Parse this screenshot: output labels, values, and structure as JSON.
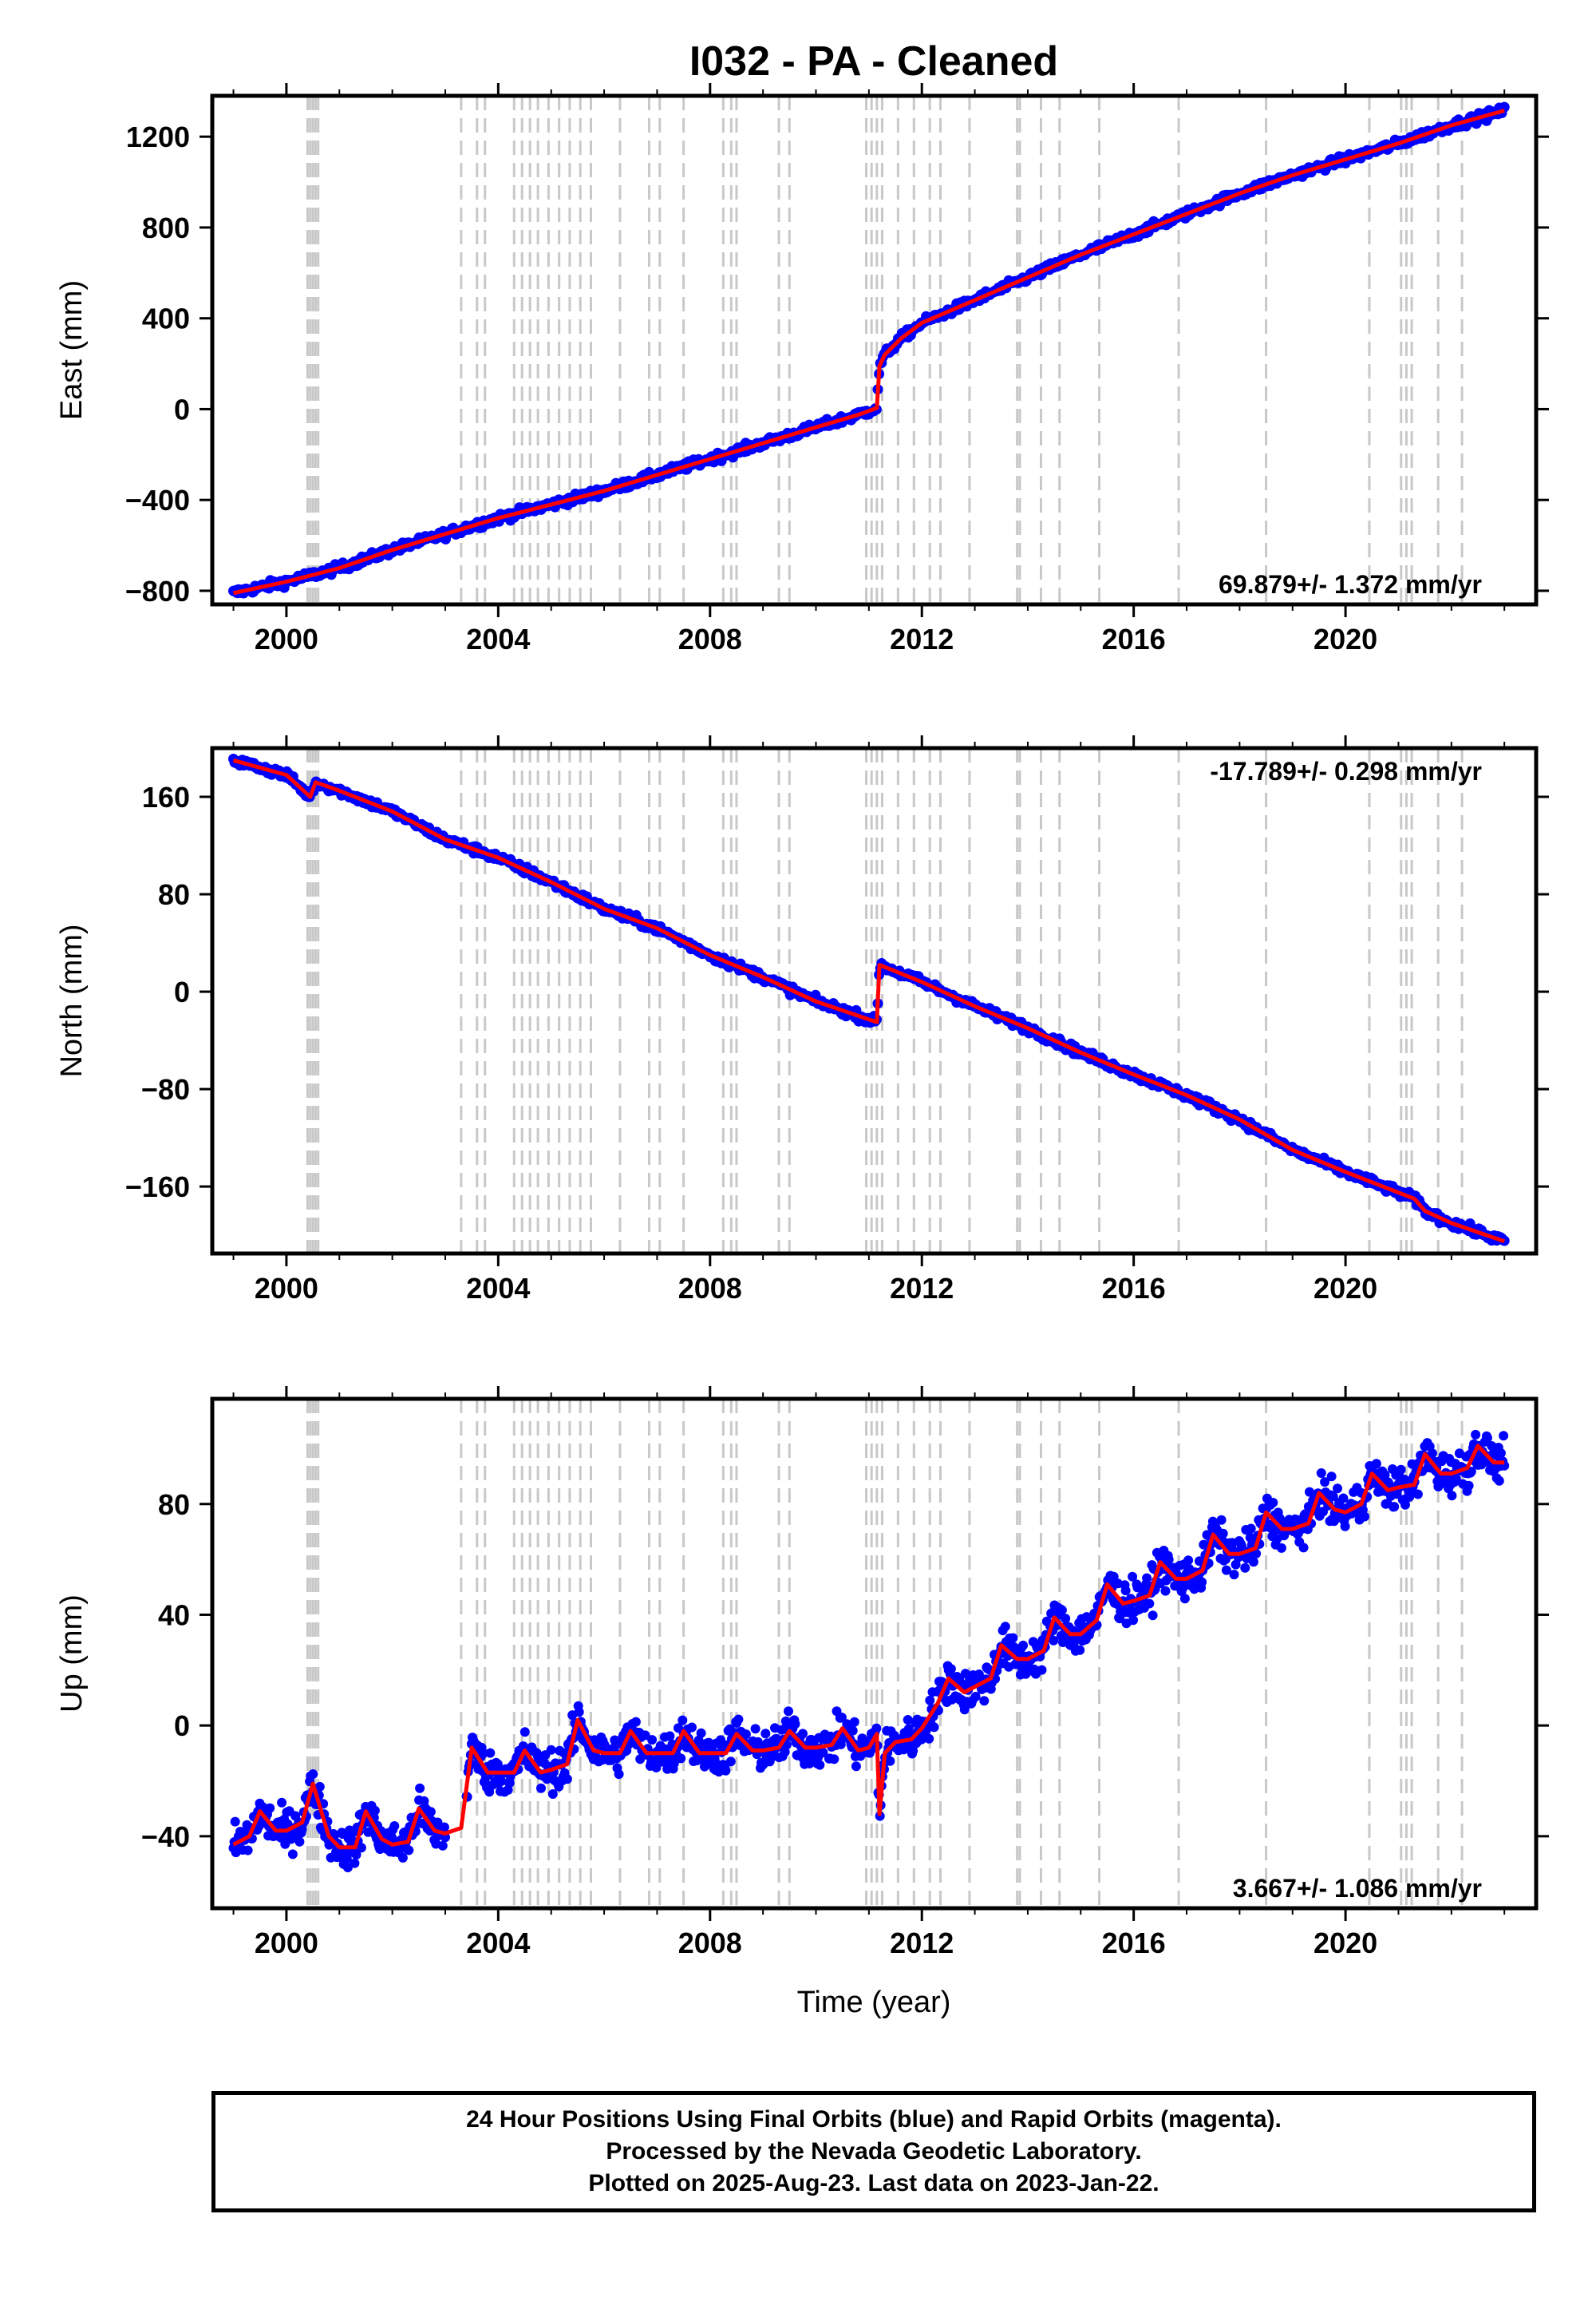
{
  "title": "I032  - PA - Cleaned",
  "xlabel": "Time (year)",
  "footer": {
    "line1": "24 Hour Positions Using Final Orbits (blue) and Rapid Orbits (magenta).",
    "line2": "Processed by the Nevada Geodetic Laboratory.",
    "line3": "Plotted on 2025-Aug-23. Last data on 2023-Jan-22."
  },
  "colors": {
    "observed": "#0000ff",
    "model": "#ff0000",
    "steps": "#c8c8c8",
    "frame": "#000000"
  },
  "chart_data": [
    {
      "type": "scatter",
      "component": "East",
      "ylabel": "East (mm)",
      "xlim": [
        1998.6,
        2023.6
      ],
      "ylim": [
        -860,
        1380
      ],
      "xticks": [
        2000,
        2004,
        2008,
        2012,
        2016,
        2020
      ],
      "yticks": [
        -800,
        -400,
        0,
        400,
        800,
        1200
      ],
      "ytick_labels": [
        "−800",
        "−400",
        "0",
        "400",
        "800",
        "1200"
      ],
      "rate_label": "69.879+/- 1.372 mm/yr",
      "rate_position": "bottom-right",
      "grid": false,
      "series": [
        {
          "name": "",
          "style": "blue dots (daily positions)",
          "x": [
            1999.0,
            2000.0,
            2001.0,
            2002.0,
            2003.0,
            2004.0,
            2005.0,
            2006.0,
            2007.0,
            2008.0,
            2009.0,
            2010.0,
            2010.8,
            2011.15,
            2011.2,
            2011.3,
            2011.6,
            2012.0,
            2013.0,
            2014.0,
            2015.0,
            2016.0,
            2017.0,
            2018.0,
            2019.0,
            2020.0,
            2021.0,
            2022.0,
            2023.0
          ],
          "y": [
            -810,
            -760,
            -700,
            -620,
            -550,
            -480,
            -420,
            -360,
            -290,
            -220,
            -150,
            -80,
            -25,
            5,
            190,
            240,
            310,
            380,
            480,
            580,
            680,
            770,
            860,
            950,
            1030,
            1100,
            1170,
            1250,
            1315
          ]
        },
        {
          "name": "",
          "style": "red line (model)",
          "x": [
            1999.0,
            2000.0,
            2001.0,
            2002.0,
            2003.0,
            2004.0,
            2005.0,
            2006.0,
            2007.0,
            2008.0,
            2009.0,
            2010.0,
            2010.8,
            2011.15,
            2011.2,
            2011.3,
            2011.6,
            2012.0,
            2013.0,
            2014.0,
            2015.0,
            2016.0,
            2017.0,
            2018.0,
            2019.0,
            2020.0,
            2021.0,
            2022.0,
            2023.0
          ],
          "y": [
            -810,
            -760,
            -700,
            -620,
            -550,
            -480,
            -420,
            -360,
            -290,
            -220,
            -150,
            -80,
            -25,
            5,
            190,
            240,
            310,
            380,
            480,
            580,
            680,
            770,
            860,
            950,
            1030,
            1100,
            1170,
            1250,
            1315
          ]
        }
      ]
    },
    {
      "type": "scatter",
      "component": "North",
      "ylabel": "North (mm)",
      "xlim": [
        1998.6,
        2023.6
      ],
      "ylim": [
        -215,
        200
      ],
      "xticks": [
        2000,
        2004,
        2008,
        2012,
        2016,
        2020
      ],
      "yticks": [
        -160,
        -80,
        0,
        80,
        160
      ],
      "ytick_labels": [
        "−160",
        "−80",
        "0",
        "80",
        "160"
      ],
      "rate_label": "-17.789+/- 0.298 mm/yr",
      "rate_position": "top-right",
      "grid": false,
      "series": [
        {
          "name": "",
          "style": "blue dots (daily positions)",
          "x": [
            1999.0,
            2000.0,
            2000.45,
            2000.55,
            2001.0,
            2002.0,
            2003.0,
            2004.0,
            2005.0,
            2006.0,
            2007.0,
            2008.0,
            2009.0,
            2010.0,
            2011.15,
            2011.2,
            2012.0,
            2013.0,
            2014.0,
            2015.0,
            2016.0,
            2017.0,
            2018.0,
            2019.0,
            2020.0,
            2021.0,
            2021.3,
            2021.5,
            2022.0,
            2023.0
          ],
          "y": [
            190,
            178,
            160,
            172,
            165,
            148,
            125,
            110,
            90,
            68,
            52,
            30,
            12,
            -8,
            -25,
            22,
            8,
            -12,
            -30,
            -50,
            -68,
            -85,
            -105,
            -130,
            -148,
            -165,
            -170,
            -180,
            -190,
            -205
          ]
        },
        {
          "name": "",
          "style": "red line (model)",
          "x": [
            1999.0,
            2000.0,
            2000.45,
            2000.55,
            2001.0,
            2002.0,
            2003.0,
            2004.0,
            2005.0,
            2006.0,
            2007.0,
            2008.0,
            2009.0,
            2010.0,
            2011.15,
            2011.2,
            2012.0,
            2013.0,
            2014.0,
            2015.0,
            2016.0,
            2017.0,
            2018.0,
            2019.0,
            2020.0,
            2021.0,
            2021.3,
            2021.5,
            2022.0,
            2023.0
          ],
          "y": [
            190,
            178,
            160,
            172,
            165,
            148,
            125,
            110,
            90,
            68,
            52,
            30,
            12,
            -8,
            -25,
            22,
            8,
            -12,
            -30,
            -50,
            -68,
            -85,
            -105,
            -130,
            -148,
            -165,
            -170,
            -180,
            -190,
            -205
          ]
        }
      ]
    },
    {
      "type": "scatter",
      "component": "Up",
      "ylabel": "Up (mm)",
      "xlim": [
        1998.6,
        2023.6
      ],
      "ylim": [
        -66,
        118
      ],
      "xticks": [
        2000,
        2004,
        2008,
        2012,
        2016,
        2020
      ],
      "yticks": [
        -40,
        0,
        40,
        80
      ],
      "ytick_labels": [
        "−40",
        "0",
        "40",
        "80"
      ],
      "rate_label": "3.667+/- 1.086 mm/yr",
      "rate_position": "bottom-right",
      "grid": false,
      "series": [
        {
          "name": "",
          "style": "red line (model)",
          "x": [
            1999.0,
            1999.3,
            1999.5,
            1999.8,
            2000.0,
            2000.3,
            2000.5,
            2000.8,
            2001.0,
            2001.3,
            2001.5,
            2001.8,
            2002.0,
            2002.3,
            2002.5,
            2002.8,
            2003.0,
            2003.3,
            2003.5,
            2003.8,
            2004.0,
            2004.3,
            2004.5,
            2004.8,
            2005.0,
            2005.3,
            2005.5,
            2005.8,
            2006.0,
            2006.3,
            2006.5,
            2006.8,
            2007.0,
            2007.3,
            2007.5,
            2007.8,
            2008.0,
            2008.3,
            2008.5,
            2008.8,
            2009.0,
            2009.3,
            2009.5,
            2009.8,
            2010.0,
            2010.3,
            2010.5,
            2010.8,
            2011.0,
            2011.15,
            2011.2,
            2011.3,
            2011.5,
            2011.8,
            2012.0,
            2012.3,
            2012.5,
            2012.8,
            2013.0,
            2013.3,
            2013.5,
            2013.8,
            2014.0,
            2014.3,
            2014.5,
            2014.8,
            2015.0,
            2015.3,
            2015.5,
            2015.8,
            2016.0,
            2016.3,
            2016.5,
            2016.8,
            2017.0,
            2017.3,
            2017.5,
            2017.8,
            2018.0,
            2018.3,
            2018.5,
            2018.8,
            2019.0,
            2019.3,
            2019.5,
            2019.8,
            2020.0,
            2020.3,
            2020.5,
            2020.8,
            2021.0,
            2021.3,
            2021.5,
            2021.8,
            2022.0,
            2022.3,
            2022.5,
            2022.8,
            2023.0
          ],
          "y": [
            -43,
            -40,
            -31,
            -38,
            -38,
            -35,
            -21,
            -40,
            -44,
            -44,
            -31,
            -41,
            -43,
            -42,
            -30,
            -38,
            -39,
            -37,
            -8,
            -17,
            -17,
            -17,
            -9,
            -17,
            -16,
            -14,
            2,
            -9,
            -10,
            -10,
            -2,
            -10,
            -10,
            -10,
            -2,
            -10,
            -10,
            -10,
            -3,
            -9,
            -9,
            -8,
            -2,
            -8,
            -8,
            -7,
            -1,
            -9,
            -8,
            -3,
            -32,
            -10,
            -6,
            -5,
            -1,
            8,
            17,
            12,
            14,
            17,
            29,
            24,
            24,
            27,
            39,
            33,
            33,
            38,
            51,
            44,
            45,
            47,
            59,
            53,
            53,
            56,
            69,
            62,
            62,
            64,
            77,
            71,
            71,
            73,
            84,
            78,
            77,
            80,
            91,
            85,
            86,
            87,
            98,
            91,
            91,
            93,
            101,
            95,
            95
          ]
        }
      ]
    }
  ],
  "step_lines": [
    2000.4,
    2000.45,
    2000.5,
    2000.55,
    2000.6,
    2003.3,
    2003.6,
    2003.75,
    2004.3,
    2004.45,
    2004.6,
    2004.75,
    2004.95,
    2005.15,
    2005.35,
    2005.55,
    2005.75,
    2006.3,
    2006.85,
    2007.05,
    2007.5,
    2008.25,
    2008.4,
    2008.5,
    2009.3,
    2009.5,
    2010.95,
    2011.05,
    2011.15,
    2011.25,
    2011.55,
    2011.85,
    2012.15,
    2012.35,
    2012.9,
    2013.8,
    2013.85,
    2014.25,
    2014.6,
    2015.35,
    2016.85,
    2018.5,
    2020.45,
    2021.05,
    2021.15,
    2021.25,
    2021.75,
    2022.2
  ]
}
